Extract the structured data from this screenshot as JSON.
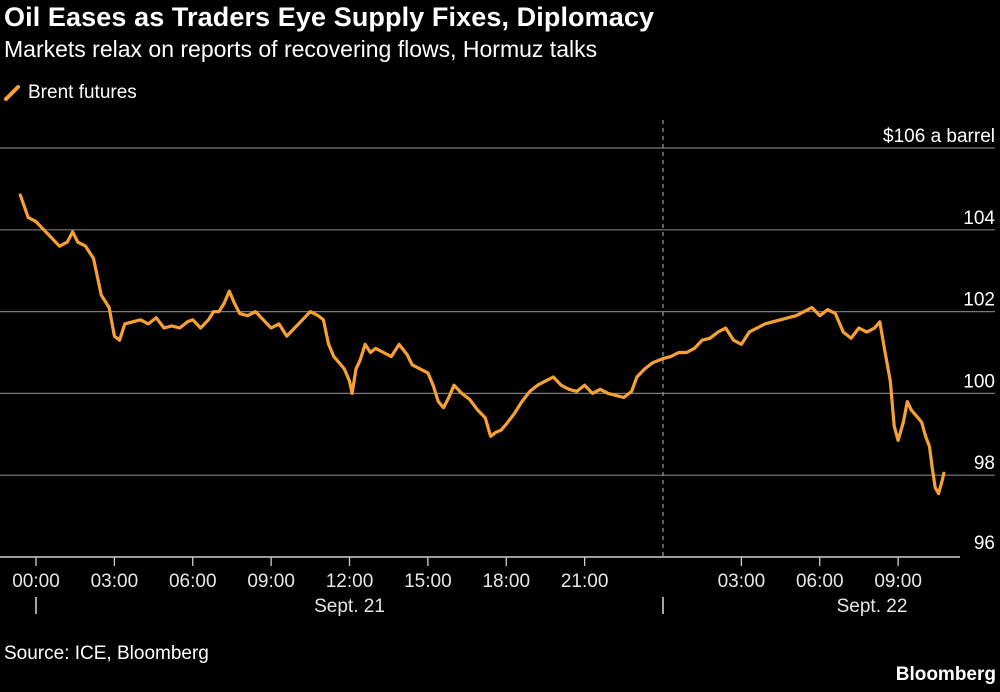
{
  "header": {
    "title": "Oil Eases as Traders Eye Supply Fixes, Diplomacy",
    "subtitle": "Markets relax on reports of recovering flows, Hormuz talks"
  },
  "footer": {
    "source": "Source: ICE, Bloomberg",
    "brand": "Bloomberg"
  },
  "colors": {
    "line": "#f7a134",
    "background": "#000000",
    "grid": "#7a7a7a",
    "text": "#ffffff"
  },
  "chart_data": {
    "type": "line",
    "series": [
      {
        "name": "Brent futures",
        "points": [
          [
            -0.6,
            104.85
          ],
          [
            -0.3,
            104.3
          ],
          [
            0.0,
            104.2
          ],
          [
            0.3,
            104.0
          ],
          [
            0.6,
            103.8
          ],
          [
            0.9,
            103.6
          ],
          [
            1.2,
            103.7
          ],
          [
            1.4,
            103.95
          ],
          [
            1.6,
            103.7
          ],
          [
            1.9,
            103.6
          ],
          [
            2.2,
            103.3
          ],
          [
            2.5,
            102.4
          ],
          [
            2.8,
            102.1
          ],
          [
            3.0,
            101.4
          ],
          [
            3.2,
            101.3
          ],
          [
            3.4,
            101.7
          ],
          [
            3.7,
            101.75
          ],
          [
            4.0,
            101.8
          ],
          [
            4.3,
            101.7
          ],
          [
            4.6,
            101.85
          ],
          [
            4.9,
            101.6
          ],
          [
            5.2,
            101.65
          ],
          [
            5.5,
            101.6
          ],
          [
            5.8,
            101.75
          ],
          [
            6.0,
            101.8
          ],
          [
            6.3,
            101.6
          ],
          [
            6.6,
            101.8
          ],
          [
            6.8,
            102.0
          ],
          [
            7.0,
            102.0
          ],
          [
            7.2,
            102.2
          ],
          [
            7.4,
            102.5
          ],
          [
            7.6,
            102.2
          ],
          [
            7.8,
            101.95
          ],
          [
            8.1,
            101.9
          ],
          [
            8.4,
            102.0
          ],
          [
            8.7,
            101.8
          ],
          [
            9.0,
            101.6
          ],
          [
            9.3,
            101.7
          ],
          [
            9.6,
            101.4
          ],
          [
            9.9,
            101.6
          ],
          [
            10.2,
            101.8
          ],
          [
            10.5,
            102.0
          ],
          [
            10.8,
            101.9
          ],
          [
            11.0,
            101.8
          ],
          [
            11.2,
            101.2
          ],
          [
            11.4,
            100.9
          ],
          [
            11.6,
            100.75
          ],
          [
            11.8,
            100.6
          ],
          [
            12.0,
            100.3
          ],
          [
            12.1,
            100.0
          ],
          [
            12.25,
            100.6
          ],
          [
            12.4,
            100.8
          ],
          [
            12.6,
            101.2
          ],
          [
            12.8,
            101.0
          ],
          [
            13.0,
            101.1
          ],
          [
            13.3,
            101.0
          ],
          [
            13.6,
            100.9
          ],
          [
            13.9,
            101.2
          ],
          [
            14.2,
            100.95
          ],
          [
            14.4,
            100.7
          ],
          [
            14.7,
            100.6
          ],
          [
            15.0,
            100.5
          ],
          [
            15.2,
            100.2
          ],
          [
            15.4,
            99.8
          ],
          [
            15.6,
            99.65
          ],
          [
            15.8,
            99.9
          ],
          [
            16.0,
            100.2
          ],
          [
            16.3,
            100.0
          ],
          [
            16.6,
            99.85
          ],
          [
            16.9,
            99.6
          ],
          [
            17.2,
            99.4
          ],
          [
            17.4,
            98.95
          ],
          [
            17.6,
            99.05
          ],
          [
            17.8,
            99.1
          ],
          [
            18.0,
            99.25
          ],
          [
            18.3,
            99.5
          ],
          [
            18.6,
            99.8
          ],
          [
            18.9,
            100.05
          ],
          [
            19.2,
            100.2
          ],
          [
            19.5,
            100.3
          ],
          [
            19.8,
            100.4
          ],
          [
            20.1,
            100.2
          ],
          [
            20.4,
            100.1
          ],
          [
            20.7,
            100.05
          ],
          [
            21.0,
            100.2
          ],
          [
            21.3,
            100.0
          ],
          [
            21.6,
            100.1
          ],
          [
            21.9,
            100.0
          ],
          [
            22.2,
            99.95
          ],
          [
            22.5,
            99.9
          ],
          [
            22.8,
            100.05
          ],
          [
            23.0,
            100.4
          ],
          [
            23.3,
            100.6
          ],
          [
            23.6,
            100.75
          ],
          [
            24.0,
            100.85
          ],
          [
            24.3,
            100.9
          ],
          [
            24.6,
            101.0
          ],
          [
            24.9,
            101.0
          ],
          [
            25.2,
            101.1
          ],
          [
            25.5,
            101.3
          ],
          [
            25.8,
            101.35
          ],
          [
            26.1,
            101.5
          ],
          [
            26.4,
            101.6
          ],
          [
            26.7,
            101.3
          ],
          [
            27.0,
            101.2
          ],
          [
            27.3,
            101.5
          ],
          [
            27.6,
            101.6
          ],
          [
            27.9,
            101.7
          ],
          [
            28.2,
            101.75
          ],
          [
            28.5,
            101.8
          ],
          [
            28.8,
            101.85
          ],
          [
            29.1,
            101.9
          ],
          [
            29.4,
            102.0
          ],
          [
            29.7,
            102.1
          ],
          [
            30.0,
            101.9
          ],
          [
            30.3,
            102.05
          ],
          [
            30.6,
            101.95
          ],
          [
            30.9,
            101.5
          ],
          [
            31.2,
            101.35
          ],
          [
            31.5,
            101.6
          ],
          [
            31.8,
            101.5
          ],
          [
            32.1,
            101.6
          ],
          [
            32.3,
            101.75
          ],
          [
            32.5,
            101.0
          ],
          [
            32.7,
            100.3
          ],
          [
            32.85,
            99.2
          ],
          [
            33.0,
            98.85
          ],
          [
            33.2,
            99.3
          ],
          [
            33.35,
            99.8
          ],
          [
            33.5,
            99.6
          ],
          [
            33.7,
            99.45
          ],
          [
            33.9,
            99.3
          ],
          [
            34.05,
            98.95
          ],
          [
            34.2,
            98.7
          ],
          [
            34.3,
            98.2
          ],
          [
            34.42,
            97.7
          ],
          [
            34.55,
            97.55
          ],
          [
            34.7,
            97.9
          ],
          [
            34.75,
            98.05
          ]
        ]
      }
    ],
    "y_axis": {
      "range": [
        96,
        106
      ],
      "ticks": [
        {
          "value": 106,
          "label": "$106 a barrel"
        },
        {
          "value": 104,
          "label": "104"
        },
        {
          "value": 102,
          "label": "102"
        },
        {
          "value": 100,
          "label": "100"
        },
        {
          "value": 98,
          "label": "98"
        },
        {
          "value": 96,
          "label": "96"
        }
      ]
    },
    "x_axis": {
      "range_hours": [
        -0.8,
        35.5
      ],
      "day_boundary_hours": 24,
      "ticks": [
        {
          "hour": 0,
          "label": "00:00"
        },
        {
          "hour": 3,
          "label": "03:00"
        },
        {
          "hour": 6,
          "label": "06:00"
        },
        {
          "hour": 9,
          "label": "09:00"
        },
        {
          "hour": 12,
          "label": "12:00"
        },
        {
          "hour": 15,
          "label": "15:00"
        },
        {
          "hour": 18,
          "label": "18:00"
        },
        {
          "hour": 21,
          "label": "21:00"
        },
        {
          "hour": 27,
          "label": "03:00"
        },
        {
          "hour": 30,
          "label": "06:00"
        },
        {
          "hour": 33,
          "label": "09:00"
        }
      ],
      "days": [
        {
          "hour": 12,
          "label": "Sept. 21"
        },
        {
          "hour": 32,
          "label": "Sept. 22"
        }
      ]
    },
    "grid": true,
    "legend": "top-left"
  }
}
